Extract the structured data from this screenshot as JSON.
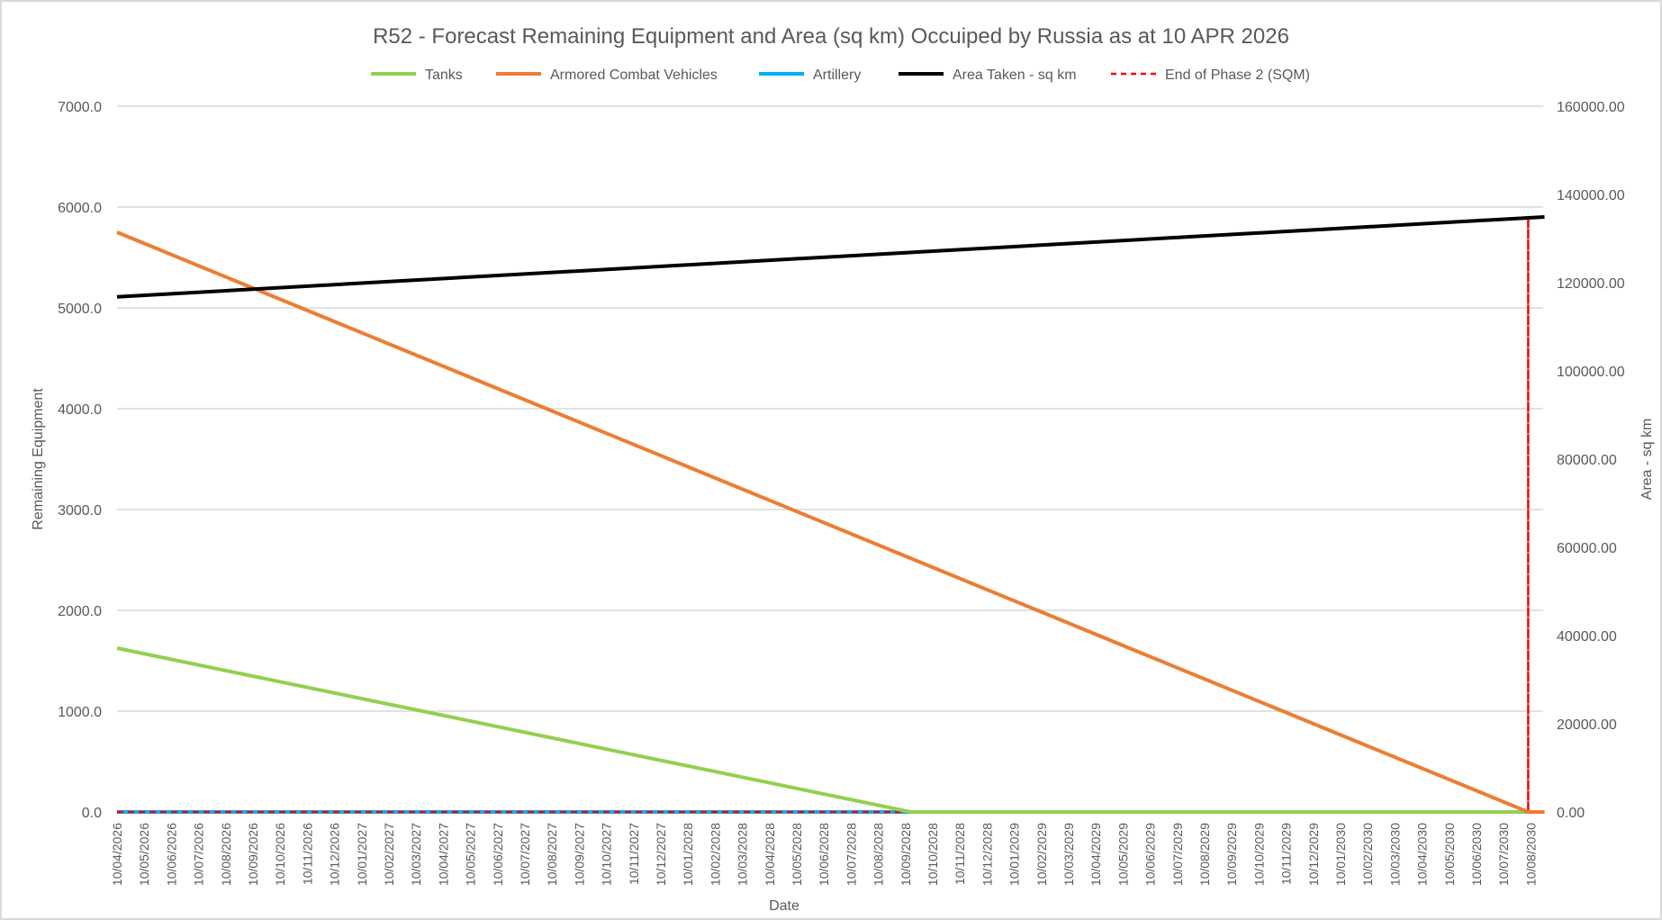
{
  "chart_data": {
    "type": "line",
    "title": "R52 - Forecast Remaining Equipment and Area (sq km) Occuiped by Russia as at 10 APR 2026",
    "xlabel": "Date",
    "ylabel": "Remaining Equipment",
    "y2label": "Area - sq km",
    "ylim": [
      0,
      7000
    ],
    "y2lim": [
      0,
      160000
    ],
    "yticks": [
      "0.0",
      "1000.0",
      "2000.0",
      "3000.0",
      "4000.0",
      "5000.0",
      "6000.0",
      "7000.0"
    ],
    "y2ticks": [
      "0.00",
      "20000.00",
      "40000.00",
      "60000.00",
      "80000.00",
      "100000.00",
      "120000.00",
      "140000.00",
      "160000.00"
    ],
    "grid": true,
    "legend_position": "top",
    "categories": [
      "10/04/2026",
      "10/05/2026",
      "10/06/2026",
      "10/07/2026",
      "10/08/2026",
      "10/09/2026",
      "10/10/2026",
      "10/11/2026",
      "10/12/2026",
      "10/01/2027",
      "10/02/2027",
      "10/03/2027",
      "10/04/2027",
      "10/05/2027",
      "10/06/2027",
      "10/07/2027",
      "10/08/2027",
      "10/09/2027",
      "10/10/2027",
      "10/11/2027",
      "10/12/2027",
      "10/01/2028",
      "10/02/2028",
      "10/03/2028",
      "10/04/2028",
      "10/05/2028",
      "10/06/2028",
      "10/07/2028",
      "10/08/2028",
      "10/09/2028",
      "10/10/2028",
      "10/11/2028",
      "10/12/2028",
      "10/01/2029",
      "10/02/2029",
      "10/03/2029",
      "10/04/2029",
      "10/05/2029",
      "10/06/2029",
      "10/07/2029",
      "10/08/2029",
      "10/09/2029",
      "10/10/2029",
      "10/11/2029",
      "10/12/2029",
      "10/01/2030",
      "10/02/2030",
      "10/03/2030",
      "10/04/2030",
      "10/05/2030",
      "10/06/2030",
      "10/07/2030",
      "10/08/2030"
    ],
    "series": [
      {
        "name": "Tanks",
        "color": "#92d050",
        "axis": "left",
        "style": "solid",
        "points": [
          [
            0,
            1625
          ],
          [
            29.2,
            0
          ],
          [
            52.5,
            0
          ]
        ]
      },
      {
        "name": "Armored Combat Vehicles",
        "color": "#ed7d31",
        "axis": "left",
        "style": "solid",
        "points": [
          [
            0,
            5750
          ],
          [
            51.9,
            0
          ],
          [
            52.5,
            0
          ]
        ]
      },
      {
        "name": "Artillery",
        "color": "#00b0f0",
        "axis": "left",
        "style": "solid",
        "points": [
          [
            0,
            0
          ],
          [
            52.5,
            0
          ]
        ]
      },
      {
        "name": "Area Taken - sq km",
        "color": "#000000",
        "axis": "right",
        "style": "solid",
        "points": [
          [
            0,
            116800
          ],
          [
            52.5,
            134900
          ]
        ]
      },
      {
        "name": "End of Phase 2 (SQM)",
        "color": "#ff0000",
        "axis": "right",
        "style": "dashed",
        "points": [
          [
            0,
            0
          ],
          [
            51.9,
            0
          ],
          [
            51.9,
            134700
          ],
          [
            51.9,
            0
          ],
          [
            52.5,
            0
          ]
        ]
      }
    ]
  }
}
